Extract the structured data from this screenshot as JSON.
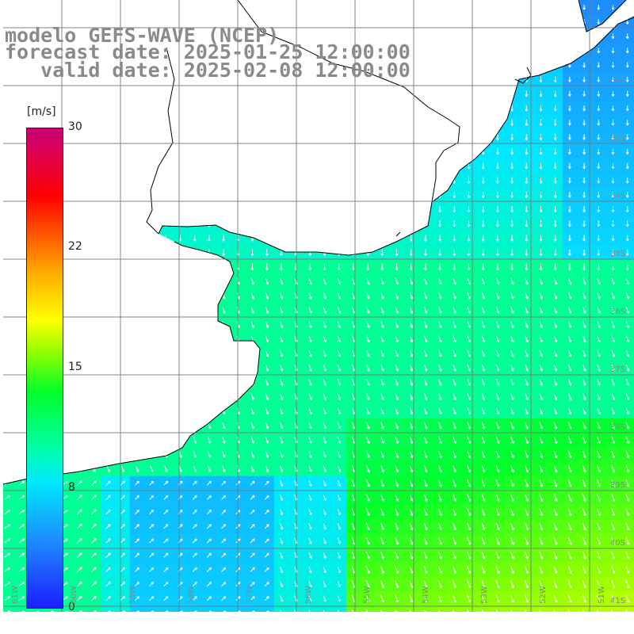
{
  "title": {
    "line1": "modelo GEFS-WAVE (NCEP)",
    "line2": "forecast date: 2025-01-25 12:00:00",
    "line3": "   valid date: 2025-02-08 12:00:00"
  },
  "colorbar": {
    "unit": "[m/s]",
    "ticks": [
      "30",
      "22",
      "15",
      "8",
      "0"
    ],
    "colors": [
      "#1d1dff",
      "#1e8cff",
      "#00e8ff",
      "#00ff2a",
      "#ffff00",
      "#ff0000",
      "#c8007a"
    ]
  },
  "lat_labels": [
    "32S",
    "33S",
    "34S",
    "35S",
    "36S",
    "37S",
    "38S",
    "39S",
    "40S",
    "41S"
  ],
  "lon_labels": [
    "61W",
    "60W",
    "59W",
    "58W",
    "57W",
    "56W",
    "55W",
    "54W",
    "53W",
    "52W",
    "51W"
  ]
}
